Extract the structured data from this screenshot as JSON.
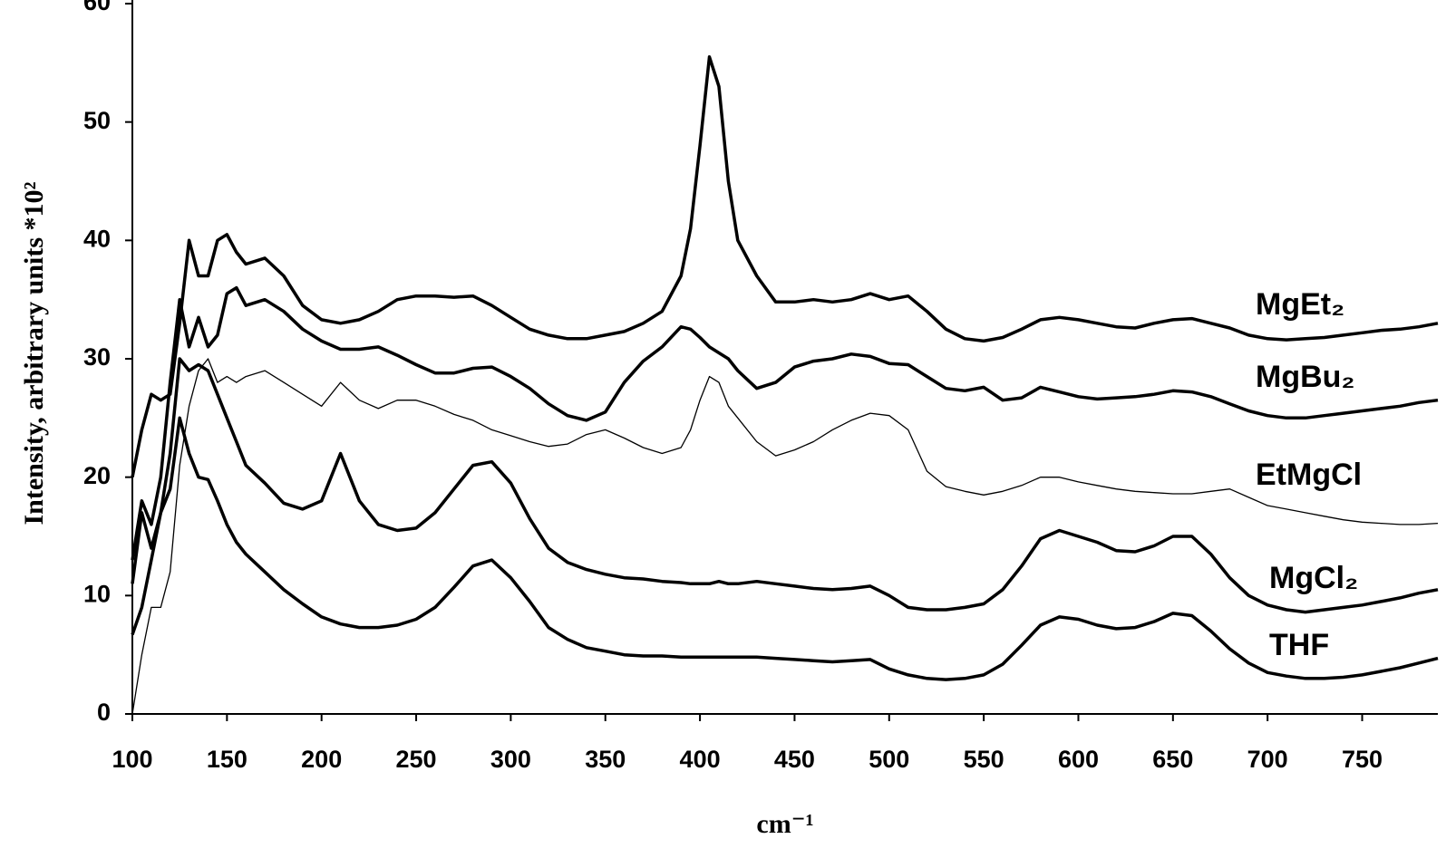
{
  "chart_data": {
    "type": "line",
    "x_label": "cm⁻¹",
    "y_label": "Intensity, arbitrary units *10²",
    "x": [
      100,
      105,
      110,
      115,
      120,
      125,
      130,
      135,
      140,
      145,
      150,
      155,
      160,
      170,
      180,
      190,
      200,
      210,
      220,
      230,
      240,
      250,
      260,
      270,
      280,
      290,
      300,
      310,
      320,
      330,
      340,
      350,
      360,
      370,
      380,
      390,
      395,
      400,
      405,
      410,
      415,
      420,
      430,
      440,
      450,
      460,
      470,
      480,
      490,
      500,
      510,
      520,
      530,
      540,
      550,
      560,
      570,
      580,
      590,
      600,
      610,
      620,
      630,
      640,
      650,
      660,
      670,
      680,
      690,
      700,
      710,
      720,
      730,
      740,
      750,
      760,
      770,
      780,
      790
    ],
    "xlim": [
      100,
      790
    ],
    "xticks": [
      100,
      150,
      200,
      250,
      300,
      350,
      400,
      450,
      500,
      550,
      600,
      650,
      700,
      750
    ],
    "ylim": [
      0,
      60
    ],
    "yticks": [
      0,
      10,
      20,
      30,
      40,
      50,
      60
    ],
    "series": [
      {
        "name": "MgEt₂",
        "color": "#000000",
        "line_width": 3.5,
        "values": [
          20,
          24,
          27,
          26.5,
          27,
          33,
          40,
          37,
          37,
          40,
          40.5,
          39,
          38,
          38.5,
          37,
          34.5,
          33.3,
          33,
          33.3,
          34,
          35,
          35.3,
          35.3,
          35.2,
          35.3,
          34.5,
          33.5,
          32.5,
          32,
          31.7,
          31.7,
          32,
          32.3,
          33,
          34,
          37,
          41,
          48,
          55.5,
          53,
          45,
          40,
          37,
          34.8,
          34.8,
          35,
          34.8,
          35,
          35.5,
          35,
          35.3,
          34,
          32.5,
          31.7,
          31.5,
          31.8,
          32.5,
          33.3,
          33.5,
          33.3,
          33,
          32.7,
          32.6,
          33,
          33.3,
          33.4,
          33,
          32.6,
          32,
          31.7,
          31.6,
          31.7,
          31.8,
          32,
          32.2,
          32.4,
          32.5,
          32.7,
          33
        ]
      },
      {
        "name": "MgBu₂",
        "color": "#000000",
        "line_width": 3.5,
        "values": [
          13,
          18,
          16,
          20,
          28,
          35,
          31,
          33.5,
          31,
          32,
          35.5,
          36,
          34.5,
          35,
          34,
          32.5,
          31.5,
          30.8,
          30.8,
          31,
          30.3,
          29.5,
          28.8,
          28.8,
          29.2,
          29.3,
          28.5,
          27.5,
          26.2,
          25.2,
          24.8,
          25.5,
          28,
          29.8,
          31,
          32.7,
          32.5,
          31.8,
          31,
          30.5,
          30,
          29,
          27.5,
          28,
          29.3,
          29.8,
          30,
          30.4,
          30.2,
          29.6,
          29.5,
          28.5,
          27.5,
          27.3,
          27.6,
          26.5,
          26.7,
          27.6,
          27.2,
          26.8,
          26.6,
          26.7,
          26.8,
          27,
          27.3,
          27.2,
          26.8,
          26.2,
          25.6,
          25.2,
          25,
          25,
          25.2,
          25.4,
          25.6,
          25.8,
          26,
          26.3,
          26.5
        ]
      },
      {
        "name": "EtMgCl",
        "color": "#000000",
        "line_width": 1.3,
        "values": [
          0,
          5,
          9,
          9,
          12,
          21,
          26,
          29,
          30,
          28,
          28.5,
          28,
          28.5,
          29,
          28,
          27,
          26,
          28,
          26.5,
          25.8,
          26.5,
          26.5,
          26,
          25.3,
          24.8,
          24,
          23.5,
          23,
          22.6,
          22.8,
          23.6,
          24,
          23.3,
          22.5,
          22,
          22.5,
          24,
          26.5,
          28.5,
          28,
          26,
          25,
          23,
          21.8,
          22.3,
          23,
          24,
          24.8,
          25.4,
          25.2,
          24,
          20.5,
          19.2,
          18.8,
          18.5,
          18.8,
          19.3,
          20,
          20,
          19.6,
          19.3,
          19,
          18.8,
          18.7,
          18.6,
          18.6,
          18.8,
          19,
          18.3,
          17.6,
          17.3,
          17,
          16.7,
          16.4,
          16.2,
          16.1,
          16,
          16,
          16.1
        ]
      },
      {
        "name": "MgCl₂",
        "color": "#000000",
        "line_width": 3.5,
        "values": [
          11,
          17,
          14,
          17,
          22,
          30,
          29,
          29.5,
          29,
          27,
          25,
          23,
          21,
          19.5,
          17.8,
          17.3,
          18,
          22,
          18,
          16,
          15.5,
          15.7,
          17,
          19,
          21,
          21.3,
          19.5,
          16.5,
          14,
          12.8,
          12.2,
          11.8,
          11.5,
          11.4,
          11.2,
          11.1,
          11,
          11,
          11,
          11.2,
          11,
          11,
          11.2,
          11,
          10.8,
          10.6,
          10.5,
          10.6,
          10.8,
          10,
          9,
          8.8,
          8.8,
          9,
          9.3,
          10.5,
          12.5,
          14.8,
          15.5,
          15,
          14.5,
          13.8,
          13.7,
          14.2,
          15,
          15,
          13.5,
          11.5,
          10,
          9.2,
          8.8,
          8.6,
          8.8,
          9,
          9.2,
          9.5,
          9.8,
          10.2,
          10.5
        ]
      },
      {
        "name": "THF",
        "color": "#000000",
        "line_width": 3.5,
        "values": [
          6.7,
          9,
          13,
          17,
          19,
          25,
          22,
          20,
          19.8,
          18,
          16,
          14.5,
          13.5,
          12,
          10.5,
          9.3,
          8.2,
          7.6,
          7.3,
          7.3,
          7.5,
          8,
          9,
          10.7,
          12.5,
          13,
          11.5,
          9.5,
          7.3,
          6.3,
          5.6,
          5.3,
          5,
          4.9,
          4.9,
          4.8,
          4.8,
          4.8,
          4.8,
          4.8,
          4.8,
          4.8,
          4.8,
          4.7,
          4.6,
          4.5,
          4.4,
          4.5,
          4.6,
          3.8,
          3.3,
          3,
          2.9,
          3,
          3.3,
          4.2,
          5.8,
          7.5,
          8.2,
          8,
          7.5,
          7.2,
          7.3,
          7.8,
          8.5,
          8.3,
          7,
          5.5,
          4.3,
          3.5,
          3.2,
          3,
          3,
          3.1,
          3.3,
          3.6,
          3.9,
          4.3,
          4.7
        ]
      }
    ]
  }
}
